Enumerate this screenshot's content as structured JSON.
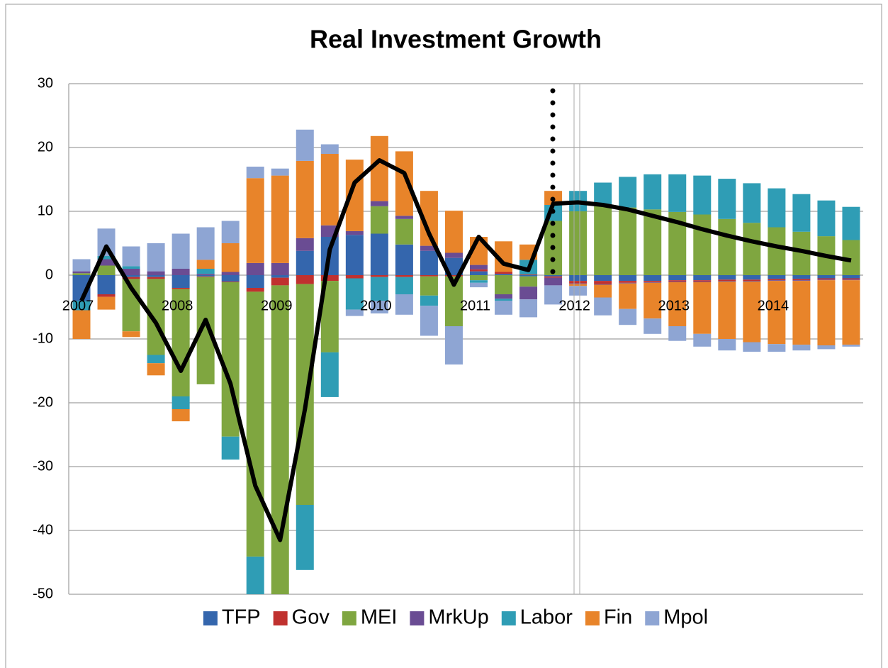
{
  "chart_data": {
    "type": "stacked_bar",
    "title": "Real Investment Growth",
    "categories": [
      "2007",
      null,
      null,
      null,
      "2008",
      null,
      null,
      null,
      "2009",
      null,
      null,
      null,
      "2010",
      null,
      null,
      null,
      "2011",
      null,
      null,
      null,
      "2012",
      null,
      null,
      null,
      "2013",
      null,
      null,
      null,
      "2014",
      null,
      null,
      null
    ],
    "series": [
      {
        "name": "TFP",
        "color": "#3466ad",
        "values": [
          -4,
          -3,
          -0.3,
          -0.3,
          -2,
          -0.2,
          -1,
          -2,
          -0.4,
          3.8,
          6,
          6.3,
          6.5,
          4.8,
          3.8,
          2.7,
          0.6,
          0.2,
          -0.2,
          -0.2,
          -0.9,
          -0.9,
          -0.9,
          -0.9,
          -0.8,
          -0.8,
          -0.7,
          -0.7,
          -0.6,
          -0.6,
          -0.5,
          -0.5
        ]
      },
      {
        "name": "Gov",
        "color": "#c0312f",
        "values": [
          0,
          -0.4,
          -0.3,
          -0.3,
          -0.2,
          -0.1,
          -0.1,
          -0.6,
          -1.2,
          -1.4,
          -0.9,
          -0.5,
          -0.3,
          -0.3,
          -0.2,
          -0.2,
          0.3,
          0.3,
          0.1,
          -0.2,
          -0.4,
          -0.5,
          -0.3,
          -0.2,
          -0.2,
          -0.2,
          -0.2,
          -0.2,
          -0.2,
          -0.2,
          -0.2,
          -0.2
        ]
      },
      {
        "name": "MEI",
        "color": "#7fa640",
        "values": [
          0.3,
          1.5,
          -8.2,
          -11.9,
          -16.8,
          -16.8,
          -24.2,
          -41.5,
          -49,
          -34.6,
          -11.2,
          0,
          4.3,
          4,
          -3,
          -7.8,
          -0.8,
          -3,
          -1.6,
          8.5,
          10,
          10.8,
          10.6,
          10.3,
          9.9,
          9.5,
          8.8,
          8.2,
          7.5,
          6.8,
          6.1,
          5.5
        ]
      },
      {
        "name": "MrkUp",
        "color": "#6a4c93",
        "values": [
          0.3,
          1,
          1,
          0.6,
          1,
          0.2,
          0.5,
          1.9,
          1.9,
          2,
          1.8,
          0.6,
          0.8,
          0.5,
          0.8,
          0.8,
          0.7,
          -0.7,
          -2,
          -1.2,
          -0.1,
          -0.1,
          -0.1,
          -0.1,
          -0.1,
          -0.1,
          -0.1,
          -0.1,
          -0.1,
          -0.1,
          -0.1,
          -0.1
        ]
      },
      {
        "name": "Labor",
        "color": "#2f9db5",
        "values": [
          -1.5,
          0.5,
          0.4,
          -1.3,
          -2,
          0.8,
          -3.6,
          -6.5,
          -1,
          -10.2,
          -7,
          -4.9,
          -3.7,
          -2.7,
          -1.6,
          0,
          -0.4,
          -0.3,
          2.3,
          2.5,
          3.2,
          3.7,
          4.8,
          5.5,
          5.9,
          6.1,
          6.3,
          6.2,
          6.1,
          5.9,
          5.6,
          5.2
        ]
      },
      {
        "name": "Fin",
        "color": "#e8842a",
        "values": [
          -4.5,
          -2,
          -0.9,
          -1.9,
          -1.9,
          1.4,
          4.5,
          13.3,
          13.7,
          12.1,
          11.2,
          11.2,
          10.2,
          10.1,
          8.6,
          6.6,
          4.4,
          4.8,
          2.4,
          2.2,
          -0.3,
          -2,
          -4,
          -5.6,
          -6.9,
          -8.1,
          -9,
          -9.5,
          -9.9,
          -10,
          -10.2,
          -10.1
        ]
      },
      {
        "name": "Mpol",
        "color": "#8ea5d3",
        "values": [
          1.9,
          4.3,
          3.1,
          4.4,
          5.5,
          5.1,
          3.5,
          1.8,
          1.1,
          4.9,
          1.5,
          -1,
          -2,
          -3.2,
          -4.7,
          -6,
          -0.7,
          -2.2,
          -2.8,
          -3,
          -1.5,
          -2.8,
          -2.5,
          -2.4,
          -2.3,
          -2,
          -1.8,
          -1.5,
          -1.2,
          -0.9,
          -0.6,
          -0.3
        ]
      }
    ],
    "line_values": [
      -4,
      4.5,
      -2,
      -7.5,
      -15,
      -7,
      -17,
      -33,
      -41.5,
      -21,
      4,
      14.5,
      18,
      16,
      6.5,
      -1.5,
      6,
      1.8,
      0.8,
      11.2,
      11.4,
      11,
      10.3,
      9.3,
      8.3,
      7.2,
      6.2,
      5.3,
      4.5,
      3.8,
      3,
      2.3
    ],
    "line_color": "#000000",
    "ylim": [
      -50,
      30
    ],
    "yticks": [
      -50,
      -40,
      -30,
      -20,
      -10,
      0,
      10,
      20,
      30
    ],
    "grid": true,
    "legend": "bottom"
  }
}
